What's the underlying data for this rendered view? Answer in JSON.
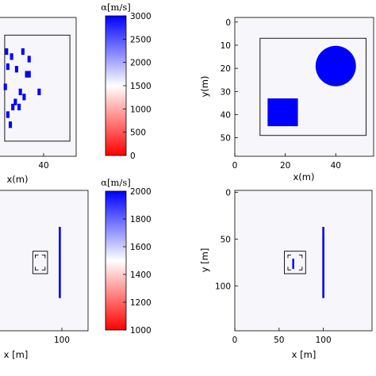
{
  "colors": {
    "background": "#f7f7fb",
    "scatterer": "#0000ff",
    "line": "#000000",
    "cmap_low": "#ff0000",
    "cmap_mid": "#ffffff",
    "cmap_high": "#0000ff"
  },
  "chart_data": [
    {
      "id": "top-left",
      "type": "heatmap",
      "title": "",
      "xlabel": "x(m)",
      "ylabel": "",
      "xticks": [
        "40"
      ],
      "yticks": [],
      "xlim": [
        -5,
        57
      ],
      "ylim": [
        0,
        55
      ],
      "y_reversed": true,
      "background_velocity": 1500,
      "box": {
        "x0": 0,
        "x1": 52,
        "y0": 7,
        "y1": 49
      },
      "squares": [
        {
          "x": 1.5,
          "y": 13.5,
          "size": 2.6
        },
        {
          "x": 5.5,
          "y": 15.5,
          "size": 2.6
        },
        {
          "x": 14.5,
          "y": 13.5,
          "size": 2.6
        },
        {
          "x": 19.5,
          "y": 16.5,
          "size": 2.6
        },
        {
          "x": 2.5,
          "y": 19.5,
          "size": 2.6
        },
        {
          "x": 9.5,
          "y": 20.5,
          "size": 2.6
        },
        {
          "x": 17.5,
          "y": 22.5,
          "size": 2.6
        },
        {
          "x": 19.5,
          "y": 22.5,
          "size": 2.6
        },
        {
          "x": 0.5,
          "y": 27.5,
          "size": 2.6
        },
        {
          "x": 12.5,
          "y": 29.5,
          "size": 2.6
        },
        {
          "x": 27.5,
          "y": 29.5,
          "size": 2.6
        },
        {
          "x": 8.5,
          "y": 33.5,
          "size": 2.6
        },
        {
          "x": 15.5,
          "y": 31.5,
          "size": 2.6
        },
        {
          "x": 6.5,
          "y": 35.5,
          "size": 2.6
        },
        {
          "x": 11.5,
          "y": 35.5,
          "size": 2.6
        },
        {
          "x": 2.5,
          "y": 38.5,
          "size": 2.6
        },
        {
          "x": 4.5,
          "y": 42.5,
          "size": 2.6
        }
      ]
    },
    {
      "id": "top-right",
      "type": "heatmap",
      "title": "",
      "xlabel": "x(m)",
      "ylabel": "y(m)",
      "xticks": [
        "0",
        "20",
        "40"
      ],
      "yticks": [
        "0",
        "10",
        "20",
        "30",
        "40",
        "50"
      ],
      "xlim": [
        0,
        55
      ],
      "ylim": [
        -2,
        58
      ],
      "y_reversed": true,
      "background_velocity": 1500,
      "box": {
        "x0": 10,
        "x1": 52,
        "y0": 7,
        "y1": 49
      },
      "circle": {
        "cx": 40,
        "cy": 19,
        "r": 8
      },
      "square": {
        "x0": 13,
        "x1": 25,
        "y0": 33,
        "y1": 45
      }
    },
    {
      "id": "bottom-left",
      "type": "heatmap",
      "title": "",
      "xlabel": "x [m]",
      "ylabel": "",
      "xticks": [
        "100"
      ],
      "yticks": [],
      "xlim": [
        0,
        146
      ],
      "ylim": [
        -2,
        148
      ],
      "y_reversed": true,
      "background_velocity": 1500,
      "bar": {
        "x": 100,
        "y0": 37,
        "y1": 113
      },
      "inner_box": {
        "x0": 60,
        "x1": 76,
        "y0": 67,
        "y1": 83
      },
      "outer_box": {
        "x0": 56,
        "x1": 80,
        "y0": 63,
        "y1": 87
      }
    },
    {
      "id": "bottom-right",
      "type": "heatmap",
      "title": "",
      "xlabel": "x [m]",
      "ylabel": "y [m]",
      "xticks": [
        "0",
        "50",
        "100"
      ],
      "yticks": [
        "0",
        "50",
        "100"
      ],
      "xlim": [
        0,
        155
      ],
      "ylim": [
        -2,
        148
      ],
      "y_reversed": true,
      "background_velocity": 1500,
      "bar": {
        "x": 100,
        "y0": 37,
        "y1": 113
      },
      "inner_bar": {
        "x": 66,
        "y0": 71,
        "y1": 82
      },
      "inner_box": {
        "x0": 60,
        "x1": 76,
        "y0": 67,
        "y1": 83
      },
      "outer_box": {
        "x0": 56,
        "x1": 80,
        "y0": 63,
        "y1": 87
      }
    }
  ],
  "colorbars": [
    {
      "id": "colorbar-top",
      "title": "α[m/s]",
      "range": [
        0,
        3000
      ],
      "ticks": [
        0,
        500,
        1000,
        1500,
        2000,
        2500,
        3000
      ],
      "tick_labels": [
        "0",
        "500",
        "1000",
        "1500",
        "2000",
        "2500",
        "3000"
      ]
    },
    {
      "id": "colorbar-bottom",
      "title": "α[m/s]",
      "range": [
        1000,
        2000
      ],
      "ticks": [
        1000,
        1200,
        1400,
        1600,
        1800,
        2000
      ],
      "tick_labels": [
        "1000",
        "1200",
        "1400",
        "1600",
        "1800",
        "2000"
      ]
    }
  ]
}
